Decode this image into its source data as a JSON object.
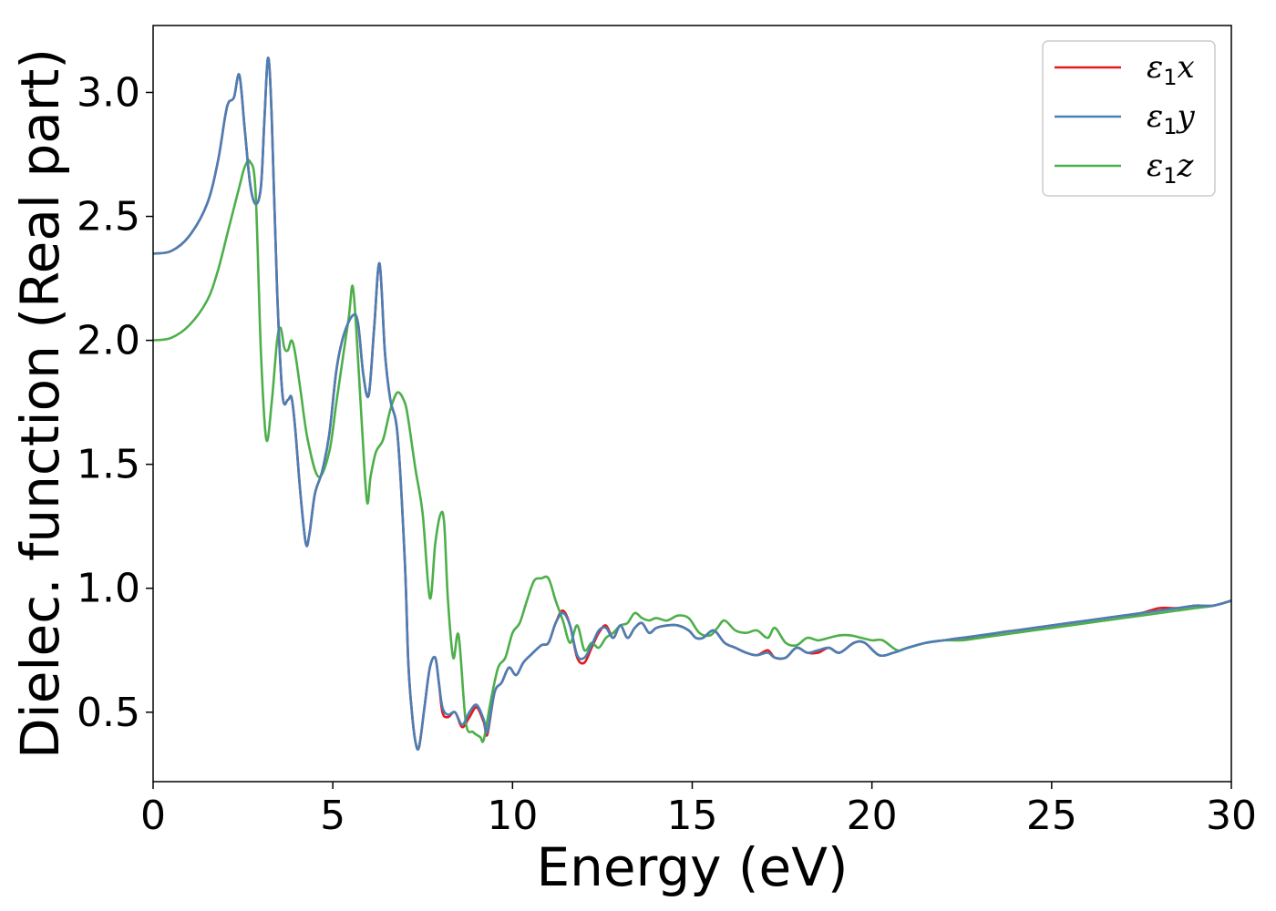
{
  "chart_data": {
    "type": "line",
    "xlabel": "Energy (eV)",
    "ylabel": "Dielec. function (Real part)",
    "xlim": [
      0,
      30
    ],
    "ylim": [
      0.22,
      3.27
    ],
    "xticks": [
      0,
      5,
      10,
      15,
      20,
      25,
      30
    ],
    "xtick_labels": [
      "0",
      "5",
      "10",
      "15",
      "20",
      "25",
      "30"
    ],
    "yticks": [
      0.5,
      1.0,
      1.5,
      2.0,
      2.5,
      3.0
    ],
    "ytick_labels": [
      "0.5",
      "1.0",
      "1.5",
      "2.0",
      "2.5",
      "3.0"
    ],
    "grid": false,
    "legend_position": "top-right",
    "series": [
      {
        "name": "ε1x",
        "legend_main": "ε",
        "legend_sub": "1",
        "legend_var": "x",
        "color": "#e41a1c",
        "x": [
          0,
          0.5,
          1.0,
          1.5,
          1.8,
          2.0,
          2.1,
          2.25,
          2.4,
          2.55,
          2.7,
          2.85,
          3.0,
          3.1,
          3.2,
          3.3,
          3.45,
          3.6,
          3.75,
          3.85,
          3.95,
          4.1,
          4.25,
          4.35,
          4.5,
          4.7,
          4.9,
          5.1,
          5.3,
          5.55,
          5.7,
          5.85,
          6.0,
          6.15,
          6.3,
          6.45,
          6.6,
          6.8,
          7.0,
          7.1,
          7.2,
          7.3,
          7.4,
          7.55,
          7.7,
          7.85,
          7.95,
          8.05,
          8.2,
          8.4,
          8.6,
          8.8,
          9.0,
          9.2,
          9.3,
          9.5,
          9.7,
          9.9,
          10.1,
          10.3,
          10.5,
          10.8,
          11.0,
          11.2,
          11.4,
          11.6,
          11.8,
          12.0,
          12.2,
          12.4,
          12.6,
          12.8,
          13.0,
          13.2,
          13.4,
          13.6,
          13.8,
          14.0,
          14.3,
          14.6,
          14.9,
          15.1,
          15.3,
          15.6,
          15.9,
          16.2,
          16.5,
          16.8,
          17.1,
          17.3,
          17.6,
          17.9,
          18.2,
          18.5,
          18.8,
          19.1,
          19.5,
          19.8,
          20.2,
          20.6,
          21.0,
          21.5,
          22.0,
          22.5,
          23.0,
          23.5,
          24.0,
          24.5,
          25.0,
          25.5,
          26.0,
          26.5,
          27.0,
          27.5,
          28.0,
          28.5,
          29.0,
          29.5,
          30.0
        ],
        "y": [
          2.35,
          2.36,
          2.42,
          2.55,
          2.72,
          2.9,
          2.96,
          2.98,
          3.07,
          2.85,
          2.63,
          2.55,
          2.62,
          2.9,
          3.14,
          2.9,
          2.2,
          1.78,
          1.76,
          1.77,
          1.65,
          1.38,
          1.18,
          1.22,
          1.38,
          1.47,
          1.62,
          1.88,
          2.02,
          2.1,
          2.07,
          1.86,
          1.78,
          2.05,
          2.31,
          1.95,
          1.76,
          1.62,
          1.12,
          0.7,
          0.5,
          0.38,
          0.36,
          0.52,
          0.68,
          0.72,
          0.62,
          0.5,
          0.48,
          0.5,
          0.44,
          0.48,
          0.52,
          0.46,
          0.41,
          0.58,
          0.62,
          0.68,
          0.65,
          0.7,
          0.73,
          0.77,
          0.78,
          0.86,
          0.91,
          0.85,
          0.72,
          0.7,
          0.76,
          0.82,
          0.85,
          0.8,
          0.85,
          0.8,
          0.84,
          0.86,
          0.82,
          0.84,
          0.85,
          0.85,
          0.83,
          0.8,
          0.8,
          0.83,
          0.78,
          0.76,
          0.74,
          0.73,
          0.75,
          0.72,
          0.72,
          0.76,
          0.74,
          0.74,
          0.76,
          0.74,
          0.78,
          0.78,
          0.73,
          0.74,
          0.76,
          0.78,
          0.79,
          0.8,
          0.8,
          0.82,
          0.83,
          0.84,
          0.85,
          0.86,
          0.87,
          0.88,
          0.89,
          0.9,
          0.92,
          0.92,
          0.93,
          0.93,
          0.95
        ]
      },
      {
        "name": "ε1y",
        "legend_main": "ε",
        "legend_sub": "1",
        "legend_var": "y",
        "color": "#4a7fb5",
        "x": [
          0,
          0.5,
          1.0,
          1.5,
          1.8,
          2.0,
          2.1,
          2.25,
          2.4,
          2.55,
          2.7,
          2.85,
          3.0,
          3.1,
          3.2,
          3.3,
          3.45,
          3.6,
          3.75,
          3.85,
          3.95,
          4.1,
          4.25,
          4.35,
          4.5,
          4.7,
          4.9,
          5.1,
          5.3,
          5.55,
          5.7,
          5.85,
          6.0,
          6.15,
          6.3,
          6.45,
          6.6,
          6.8,
          7.0,
          7.1,
          7.2,
          7.3,
          7.4,
          7.55,
          7.7,
          7.85,
          7.95,
          8.05,
          8.2,
          8.4,
          8.6,
          8.8,
          9.0,
          9.2,
          9.3,
          9.5,
          9.7,
          9.9,
          10.1,
          10.3,
          10.5,
          10.8,
          11.0,
          11.2,
          11.4,
          11.6,
          11.8,
          12.0,
          12.2,
          12.4,
          12.6,
          12.8,
          13.0,
          13.2,
          13.4,
          13.6,
          13.8,
          14.0,
          14.3,
          14.6,
          14.9,
          15.1,
          15.3,
          15.6,
          15.9,
          16.2,
          16.5,
          16.8,
          17.1,
          17.3,
          17.6,
          17.9,
          18.2,
          18.5,
          18.8,
          19.1,
          19.5,
          19.8,
          20.2,
          20.6,
          21.0,
          21.5,
          22.0,
          22.5,
          23.0,
          23.5,
          24.0,
          24.5,
          25.0,
          25.5,
          26.0,
          26.5,
          27.0,
          27.5,
          28.0,
          28.5,
          29.0,
          29.5,
          30.0
        ],
        "y": [
          2.35,
          2.36,
          2.42,
          2.55,
          2.72,
          2.9,
          2.96,
          2.98,
          3.07,
          2.85,
          2.63,
          2.55,
          2.62,
          2.9,
          3.14,
          2.9,
          2.2,
          1.78,
          1.76,
          1.77,
          1.65,
          1.38,
          1.18,
          1.22,
          1.38,
          1.47,
          1.62,
          1.88,
          2.02,
          2.1,
          2.07,
          1.86,
          1.78,
          2.05,
          2.31,
          1.95,
          1.76,
          1.62,
          1.12,
          0.7,
          0.5,
          0.38,
          0.36,
          0.52,
          0.68,
          0.72,
          0.62,
          0.52,
          0.49,
          0.5,
          0.45,
          0.5,
          0.53,
          0.47,
          0.42,
          0.58,
          0.62,
          0.68,
          0.65,
          0.7,
          0.73,
          0.77,
          0.78,
          0.86,
          0.9,
          0.85,
          0.73,
          0.72,
          0.77,
          0.83,
          0.84,
          0.8,
          0.85,
          0.8,
          0.84,
          0.86,
          0.82,
          0.84,
          0.85,
          0.85,
          0.83,
          0.8,
          0.8,
          0.83,
          0.78,
          0.76,
          0.74,
          0.73,
          0.74,
          0.72,
          0.72,
          0.76,
          0.74,
          0.75,
          0.76,
          0.74,
          0.78,
          0.78,
          0.73,
          0.74,
          0.76,
          0.78,
          0.79,
          0.8,
          0.81,
          0.82,
          0.83,
          0.84,
          0.85,
          0.86,
          0.87,
          0.88,
          0.89,
          0.9,
          0.91,
          0.92,
          0.93,
          0.93,
          0.95
        ]
      },
      {
        "name": "ε1z",
        "legend_main": "ε",
        "legend_sub": "1",
        "legend_var": "z",
        "color": "#4daf4a",
        "x": [
          0,
          0.5,
          1.0,
          1.5,
          1.8,
          2.1,
          2.4,
          2.55,
          2.7,
          2.85,
          3.0,
          3.15,
          3.3,
          3.45,
          3.55,
          3.65,
          3.75,
          3.85,
          3.95,
          4.1,
          4.3,
          4.6,
          4.9,
          5.1,
          5.3,
          5.45,
          5.55,
          5.65,
          5.8,
          5.95,
          6.05,
          6.2,
          6.4,
          6.6,
          6.8,
          7.0,
          7.1,
          7.3,
          7.5,
          7.7,
          7.85,
          8.0,
          8.1,
          8.2,
          8.35,
          8.5,
          8.7,
          8.9,
          9.1,
          9.2,
          9.4,
          9.6,
          9.8,
          10.0,
          10.2,
          10.4,
          10.6,
          10.8,
          11.0,
          11.2,
          11.4,
          11.6,
          11.8,
          12.0,
          12.2,
          12.4,
          12.6,
          12.8,
          13.0,
          13.2,
          13.4,
          13.6,
          13.8,
          14.0,
          14.3,
          14.6,
          14.9,
          15.2,
          15.5,
          15.7,
          15.9,
          16.2,
          16.5,
          16.8,
          17.1,
          17.3,
          17.6,
          17.9,
          18.2,
          18.5,
          18.8,
          19.1,
          19.4,
          19.7,
          20.0,
          20.3,
          20.7,
          21.0,
          21.5,
          22.0,
          22.5,
          23.0,
          23.5,
          24.0,
          24.5,
          25.0,
          25.5,
          26.0,
          26.5,
          27.0,
          27.5,
          28.0,
          28.5,
          29.0,
          29.5,
          30.0
        ],
        "y": [
          2.0,
          2.01,
          2.06,
          2.16,
          2.28,
          2.45,
          2.62,
          2.7,
          2.72,
          2.6,
          1.95,
          1.6,
          1.75,
          2.0,
          2.05,
          1.97,
          1.96,
          2.0,
          1.95,
          1.8,
          1.6,
          1.45,
          1.55,
          1.75,
          1.95,
          2.1,
          2.22,
          2.05,
          1.68,
          1.35,
          1.45,
          1.55,
          1.6,
          1.72,
          1.79,
          1.75,
          1.68,
          1.48,
          1.3,
          0.96,
          1.18,
          1.3,
          1.26,
          0.96,
          0.72,
          0.81,
          0.46,
          0.42,
          0.4,
          0.39,
          0.55,
          0.68,
          0.72,
          0.82,
          0.86,
          0.95,
          1.03,
          1.04,
          1.04,
          0.95,
          0.87,
          0.78,
          0.85,
          0.75,
          0.78,
          0.76,
          0.8,
          0.82,
          0.85,
          0.86,
          0.9,
          0.88,
          0.87,
          0.88,
          0.87,
          0.89,
          0.88,
          0.82,
          0.81,
          0.84,
          0.87,
          0.83,
          0.82,
          0.83,
          0.8,
          0.84,
          0.78,
          0.77,
          0.8,
          0.79,
          0.8,
          0.81,
          0.81,
          0.8,
          0.79,
          0.79,
          0.75,
          0.76,
          0.78,
          0.79,
          0.79,
          0.8,
          0.81,
          0.82,
          0.83,
          0.84,
          0.85,
          0.86,
          0.87,
          0.88,
          0.89,
          0.9,
          0.91,
          0.92,
          0.93,
          0.95
        ]
      }
    ]
  }
}
